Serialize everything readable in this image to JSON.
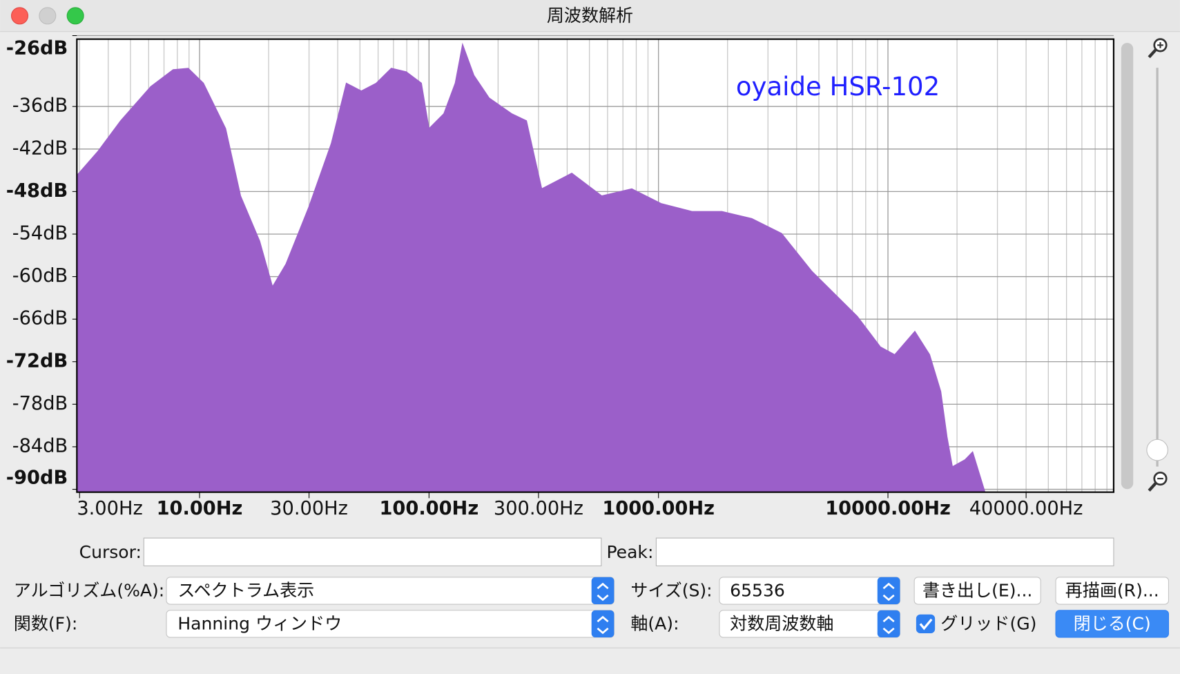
{
  "window": {
    "title": "周波数解析"
  },
  "chart_data": {
    "type": "area",
    "annotation": "oyaide HSR-102",
    "color": "#9b5fc9",
    "log_x": true,
    "grid": true,
    "xlim": [
      2.92,
      96300
    ],
    "ylim": [
      -90.4,
      -26.5
    ],
    "xticks": [
      {
        "value": 3,
        "label": "3.00Hz"
      },
      {
        "value": 10,
        "label": "10.00Hz"
      },
      {
        "value": 30,
        "label": "30.00Hz"
      },
      {
        "value": 100,
        "label": "100.00Hz"
      },
      {
        "value": 300,
        "label": "300.00Hz"
      },
      {
        "value": 1000,
        "label": "1000.00Hz"
      },
      {
        "value": 10000,
        "label": "10000.00Hz"
      },
      {
        "value": 40000,
        "label": "40000.00Hz"
      }
    ],
    "yticks": [
      {
        "value": -26,
        "label": "-26dB"
      },
      {
        "value": -36,
        "label": "-36dB"
      },
      {
        "value": -42,
        "label": "-42dB"
      },
      {
        "value": -48,
        "label": "-48dB"
      },
      {
        "value": -54,
        "label": "-54dB"
      },
      {
        "value": -60,
        "label": "-60dB"
      },
      {
        "value": -66,
        "label": "-66dB"
      },
      {
        "value": -72,
        "label": "-72dB"
      },
      {
        "value": -78,
        "label": "-78dB"
      },
      {
        "value": -84,
        "label": "-84dB"
      },
      {
        "value": -90,
        "label": "-90dB"
      }
    ],
    "x": [
      2.92,
      3.61,
      4.53,
      6.12,
      7.67,
      8.93,
      10.4,
      13.0,
      15.1,
      18.3,
      20.8,
      23.8,
      29.9,
      37.5,
      43.6,
      50.7,
      58.9,
      68.5,
      79.6,
      92.7,
      100,
      116,
      130,
      140,
      157,
      183,
      229,
      266,
      310,
      419,
      566,
      765,
      1030,
      1400,
      1890,
      2550,
      3440,
      4650,
      5850,
      7360,
      9270,
      10700,
      13100,
      15200,
      17000,
      18100,
      19100,
      21700,
      23400,
      26500
    ],
    "values": [
      -45.7,
      -42.3,
      -38.0,
      -33.2,
      -30.8,
      -30.6,
      -32.7,
      -39.1,
      -48.6,
      -55.0,
      -61.4,
      -58.2,
      -50.2,
      -41.2,
      -32.7,
      -33.8,
      -32.7,
      -30.6,
      -31.1,
      -32.7,
      -39.1,
      -37.0,
      -32.7,
      -27.2,
      -31.6,
      -34.8,
      -37.0,
      -38.0,
      -47.6,
      -45.4,
      -48.6,
      -47.6,
      -49.7,
      -50.8,
      -50.8,
      -51.8,
      -53.9,
      -59.2,
      -62.4,
      -65.6,
      -69.9,
      -71.0,
      -67.7,
      -71.0,
      -76.2,
      -82.6,
      -86.8,
      -85.8,
      -84.7,
      -90.4
    ]
  },
  "controls": {
    "cursor_label": "Cursor:",
    "peak_label": "Peak:",
    "algorithm_label": "アルゴリズム(%A):",
    "algorithm_value": "スペクトラム表示",
    "size_label": "サイズ(S):",
    "size_value": "65536",
    "export_button": "書き出し(E)...",
    "replot_button": "再描画(R)...",
    "function_label": "関数(F):",
    "function_value": "Hanning ウィンドウ",
    "axis_label": "軸(A):",
    "axis_value": "対数周波数軸",
    "grid_checkbox": "グリッド(G)",
    "close_button": "閉じる(C)"
  }
}
